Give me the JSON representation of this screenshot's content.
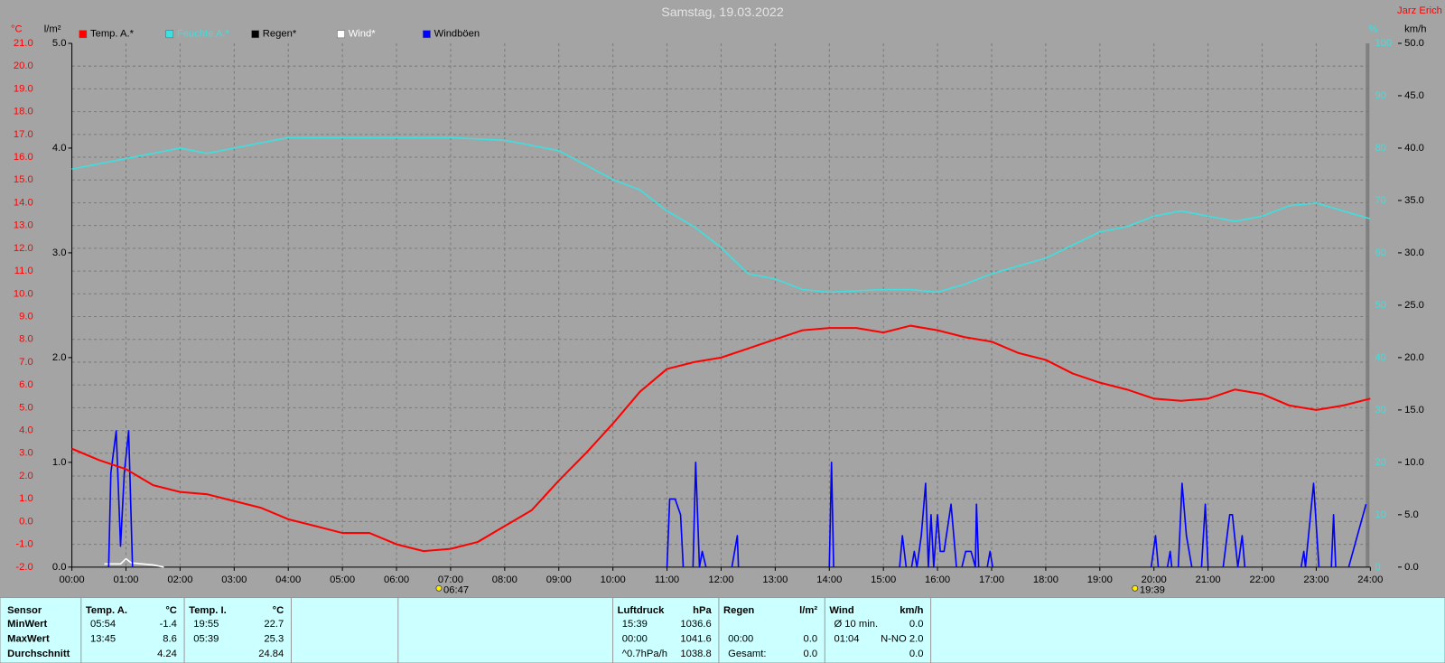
{
  "chart_data": {
    "type": "line",
    "title": "Samstag, 19.03.2022",
    "author": "Jarz Erich",
    "xlim": [
      0,
      24
    ],
    "xticks": [
      {
        "value": 0,
        "label": "00:00"
      },
      {
        "value": 1,
        "label": "01:00"
      },
      {
        "value": 2,
        "label": "02:00"
      },
      {
        "value": 3,
        "label": "03:00"
      },
      {
        "value": 4,
        "label": "04:00"
      },
      {
        "value": 5,
        "label": "05:00"
      },
      {
        "value": 6,
        "label": "06:00"
      },
      {
        "value": 7,
        "label": "07:00"
      },
      {
        "value": 8,
        "label": "08:00"
      },
      {
        "value": 9,
        "label": "09:00"
      },
      {
        "value": 10,
        "label": "10:00"
      },
      {
        "value": 11,
        "label": "11:00"
      },
      {
        "value": 12,
        "label": "12:00"
      },
      {
        "value": 13,
        "label": "13:00"
      },
      {
        "value": 14,
        "label": "14:00"
      },
      {
        "value": 15,
        "label": "15:00"
      },
      {
        "value": 16,
        "label": "16:00"
      },
      {
        "value": 17,
        "label": "17:00"
      },
      {
        "value": 18,
        "label": "18:00"
      },
      {
        "value": 19,
        "label": "19:00"
      },
      {
        "value": 20,
        "label": "20:00"
      },
      {
        "value": 21,
        "label": "21:00"
      },
      {
        "value": 22,
        "label": "22:00"
      },
      {
        "value": 23,
        "label": "23:00"
      },
      {
        "value": 24,
        "label": "24:00"
      }
    ],
    "ylabel": "°C",
    "ylim": [
      -2,
      21
    ],
    "yticks": [
      {
        "value": -2,
        "label": "-2.0"
      },
      {
        "value": -1,
        "label": "-1.0"
      },
      {
        "value": 0,
        "label": "0.0"
      },
      {
        "value": 1,
        "label": "1.0"
      },
      {
        "value": 2,
        "label": "2.0"
      },
      {
        "value": 3,
        "label": "3.0"
      },
      {
        "value": 4,
        "label": "4.0"
      },
      {
        "value": 5,
        "label": "5.0"
      },
      {
        "value": 6,
        "label": "6.0"
      },
      {
        "value": 7,
        "label": "7.0"
      },
      {
        "value": 8,
        "label": "8.0"
      },
      {
        "value": 9,
        "label": "9.0"
      },
      {
        "value": 10,
        "label": "10.0"
      },
      {
        "value": 11,
        "label": "11.0"
      },
      {
        "value": 12,
        "label": "12.0"
      },
      {
        "value": 13,
        "label": "13.0"
      },
      {
        "value": 14,
        "label": "14.0"
      },
      {
        "value": 15,
        "label": "15.0"
      },
      {
        "value": 16,
        "label": "16.0"
      },
      {
        "value": 17,
        "label": "17.0"
      },
      {
        "value": 18,
        "label": "18.0"
      },
      {
        "value": 19,
        "label": "19.0"
      },
      {
        "value": 20,
        "label": "20.0"
      },
      {
        "value": 21,
        "label": "21.0"
      }
    ],
    "y2label": "l/m²",
    "y2lim": [
      0,
      5
    ],
    "y2ticks": [
      {
        "value": 0,
        "label": "0.0"
      },
      {
        "value": 1,
        "label": "1.0"
      },
      {
        "value": 2,
        "label": "2.0"
      },
      {
        "value": 3,
        "label": "3.0"
      },
      {
        "value": 4,
        "label": "4.0"
      },
      {
        "value": 5,
        "label": "5.0"
      }
    ],
    "y3label": "%",
    "y3lim": [
      0,
      100
    ],
    "y3ticks": [
      0,
      10,
      20,
      30,
      40,
      50,
      60,
      70,
      80,
      90,
      100
    ],
    "y4label": "km/h",
    "y4lim": [
      0,
      50
    ],
    "y4ticks": [
      {
        "value": 0,
        "label": "0.0"
      },
      {
        "value": 5,
        "label": "5.0"
      },
      {
        "value": 10,
        "label": "10.0"
      },
      {
        "value": 15,
        "label": "15.0"
      },
      {
        "value": 20,
        "label": "20.0"
      },
      {
        "value": 25,
        "label": "25.0"
      },
      {
        "value": 30,
        "label": "30.0"
      },
      {
        "value": 35,
        "label": "35.0"
      },
      {
        "value": 40,
        "label": "40.0"
      },
      {
        "value": 45,
        "label": "45.0"
      },
      {
        "value": 50,
        "label": "50.0"
      }
    ],
    "grid": true,
    "annotations": [
      {
        "x": 6.783,
        "label": "06:47"
      },
      {
        "x": 19.65,
        "label": "19:39"
      }
    ],
    "series": [
      {
        "name": "Temp. A.*",
        "color": "#ff0000",
        "axis": "y",
        "x": [
          0,
          0.5,
          1,
          1.5,
          2,
          2.5,
          3,
          3.5,
          4,
          4.5,
          5,
          5.5,
          6,
          6.5,
          7,
          7.5,
          8,
          8.5,
          9,
          9.5,
          10,
          10.5,
          11,
          11.5,
          12,
          12.5,
          13,
          13.5,
          14,
          14.5,
          15,
          15.5,
          16,
          16.5,
          17,
          17.5,
          18,
          18.5,
          19,
          19.5,
          20,
          20.5,
          21,
          21.5,
          22,
          22.5,
          23,
          23.5,
          24
        ],
        "values": [
          3.2,
          2.7,
          2.3,
          1.6,
          1.3,
          1.2,
          0.9,
          0.6,
          0.1,
          -0.2,
          -0.5,
          -0.5,
          -1.0,
          -1.3,
          -1.2,
          -0.9,
          -0.2,
          0.5,
          1.8,
          3.0,
          4.3,
          5.7,
          6.7,
          7.0,
          7.2,
          7.6,
          8.0,
          8.4,
          8.5,
          8.5,
          8.3,
          8.6,
          8.4,
          8.1,
          7.9,
          7.4,
          7.1,
          6.5,
          6.1,
          5.8,
          5.4,
          5.3,
          5.4,
          5.8,
          5.6,
          5.1,
          4.9,
          5.1,
          5.4
        ]
      },
      {
        "name": "Feuchte A.*",
        "color": "#40dede",
        "axis": "y3",
        "x": [
          0,
          1,
          2,
          2.5,
          3,
          4,
          5,
          6,
          7,
          8,
          9,
          10,
          10.5,
          11,
          11.5,
          12,
          12.5,
          13,
          13.5,
          14,
          15,
          15.5,
          16,
          16.5,
          17,
          18,
          19,
          19.5,
          20,
          20.5,
          21,
          21.5,
          22,
          22.5,
          23,
          23.5,
          24
        ],
        "values": [
          76,
          78,
          80,
          79,
          80,
          82,
          82,
          82,
          82,
          81.5,
          79.5,
          74,
          72,
          68,
          65,
          61,
          56,
          55,
          53,
          52.5,
          53,
          53,
          52.5,
          54,
          56,
          59,
          64,
          65,
          67,
          68,
          67,
          66,
          67,
          69,
          69.5,
          68,
          66.5
        ]
      },
      {
        "name": "Regen*",
        "color": "#000000",
        "axis": "y2",
        "x": [],
        "values": []
      },
      {
        "name": "Wind*",
        "color": "#ffffff",
        "axis": "y4",
        "x": [
          0.6,
          0.9,
          1.0,
          1.1,
          1.5,
          1.7
        ],
        "values": [
          0.3,
          0.3,
          0.8,
          0.4,
          0.2,
          0
        ]
      },
      {
        "name": "Windböen",
        "color": "#0000ff",
        "axis": "y4",
        "x": [
          0.68,
          0.72,
          0.82,
          0.9,
          0.97,
          1.05,
          1.12,
          null,
          11.0,
          11.05,
          11.15,
          11.25,
          11.3,
          null,
          11.48,
          11.53,
          11.6,
          11.65,
          11.72,
          null,
          12.2,
          12.3,
          12.32,
          null,
          14.0,
          14.04,
          14.08,
          null,
          15.3,
          15.35,
          15.42,
          null,
          15.52,
          15.57,
          15.62,
          15.7,
          15.78,
          15.83,
          15.88,
          15.93,
          16.0,
          16.05,
          16.12,
          16.25,
          16.35,
          null,
          16.45,
          16.52,
          16.62,
          16.7,
          16.72,
          16.76,
          null,
          16.92,
          16.97,
          17.02,
          null,
          19.95,
          20.03,
          20.08,
          null,
          20.25,
          20.3,
          20.33,
          null,
          20.45,
          20.52,
          20.6,
          20.7,
          null,
          20.88,
          20.95,
          21.0,
          null,
          21.28,
          21.4,
          21.45,
          21.55,
          21.63,
          21.68,
          null,
          22.72,
          22.77,
          22.8,
          22.95,
          23.05,
          null,
          23.28,
          23.32,
          23.36,
          null,
          23.6,
          23.92
        ],
        "values": [
          0,
          9,
          13,
          2,
          9,
          13,
          0,
          null,
          0,
          6.5,
          6.5,
          5,
          0,
          null,
          0,
          10,
          0,
          1.5,
          0,
          null,
          0,
          3,
          0,
          null,
          0,
          10,
          0,
          null,
          0,
          3,
          0,
          null,
          0,
          1.5,
          0,
          3,
          8,
          0,
          5,
          0,
          5,
          1.5,
          1.5,
          6,
          0,
          null,
          0,
          1.5,
          1.5,
          0,
          6,
          0,
          null,
          0,
          1.5,
          0,
          null,
          0,
          3,
          0,
          null,
          0,
          1.5,
          0,
          null,
          0,
          8,
          3,
          0,
          null,
          0,
          6,
          0,
          null,
          0,
          5,
          5,
          0,
          3,
          0,
          null,
          0,
          1.5,
          0,
          8,
          0,
          null,
          0,
          5,
          0,
          null,
          0,
          6
        ]
      }
    ]
  },
  "table": {
    "header": "Sensor",
    "row_labels": [
      "MinWert",
      "MaxWert",
      "Durchschnitt"
    ],
    "groups": [
      {
        "title": "Temp. A.",
        "unit": "°C",
        "rows": [
          [
            "05:54",
            "-1.4"
          ],
          [
            "13:45",
            "8.6"
          ],
          [
            null,
            "4.24"
          ]
        ]
      },
      {
        "title": "Temp. I.",
        "unit": "°C",
        "rows": [
          [
            "19:55",
            "22.7"
          ],
          [
            "05:39",
            "25.3"
          ],
          [
            null,
            "24.84"
          ]
        ]
      },
      {
        "title": "Luftdruck",
        "unit": "hPa",
        "rows": [
          [
            "15:39",
            "1036.6"
          ],
          [
            "00:00",
            "1041.6"
          ],
          [
            "^0.7hPa/h",
            "1038.8"
          ]
        ]
      },
      {
        "title": "Regen",
        "unit": "l/m²",
        "rows": [
          [
            null,
            null
          ],
          [
            "00:00",
            "0.0"
          ],
          [
            "Gesamt:",
            "0.0"
          ]
        ]
      },
      {
        "title": "Wind",
        "unit": "km/h",
        "rows": [
          [
            "Ø 10 min.",
            "0.0"
          ],
          [
            "01:04",
            "N-NO 2.0"
          ],
          [
            null,
            "0.0"
          ]
        ]
      }
    ]
  }
}
